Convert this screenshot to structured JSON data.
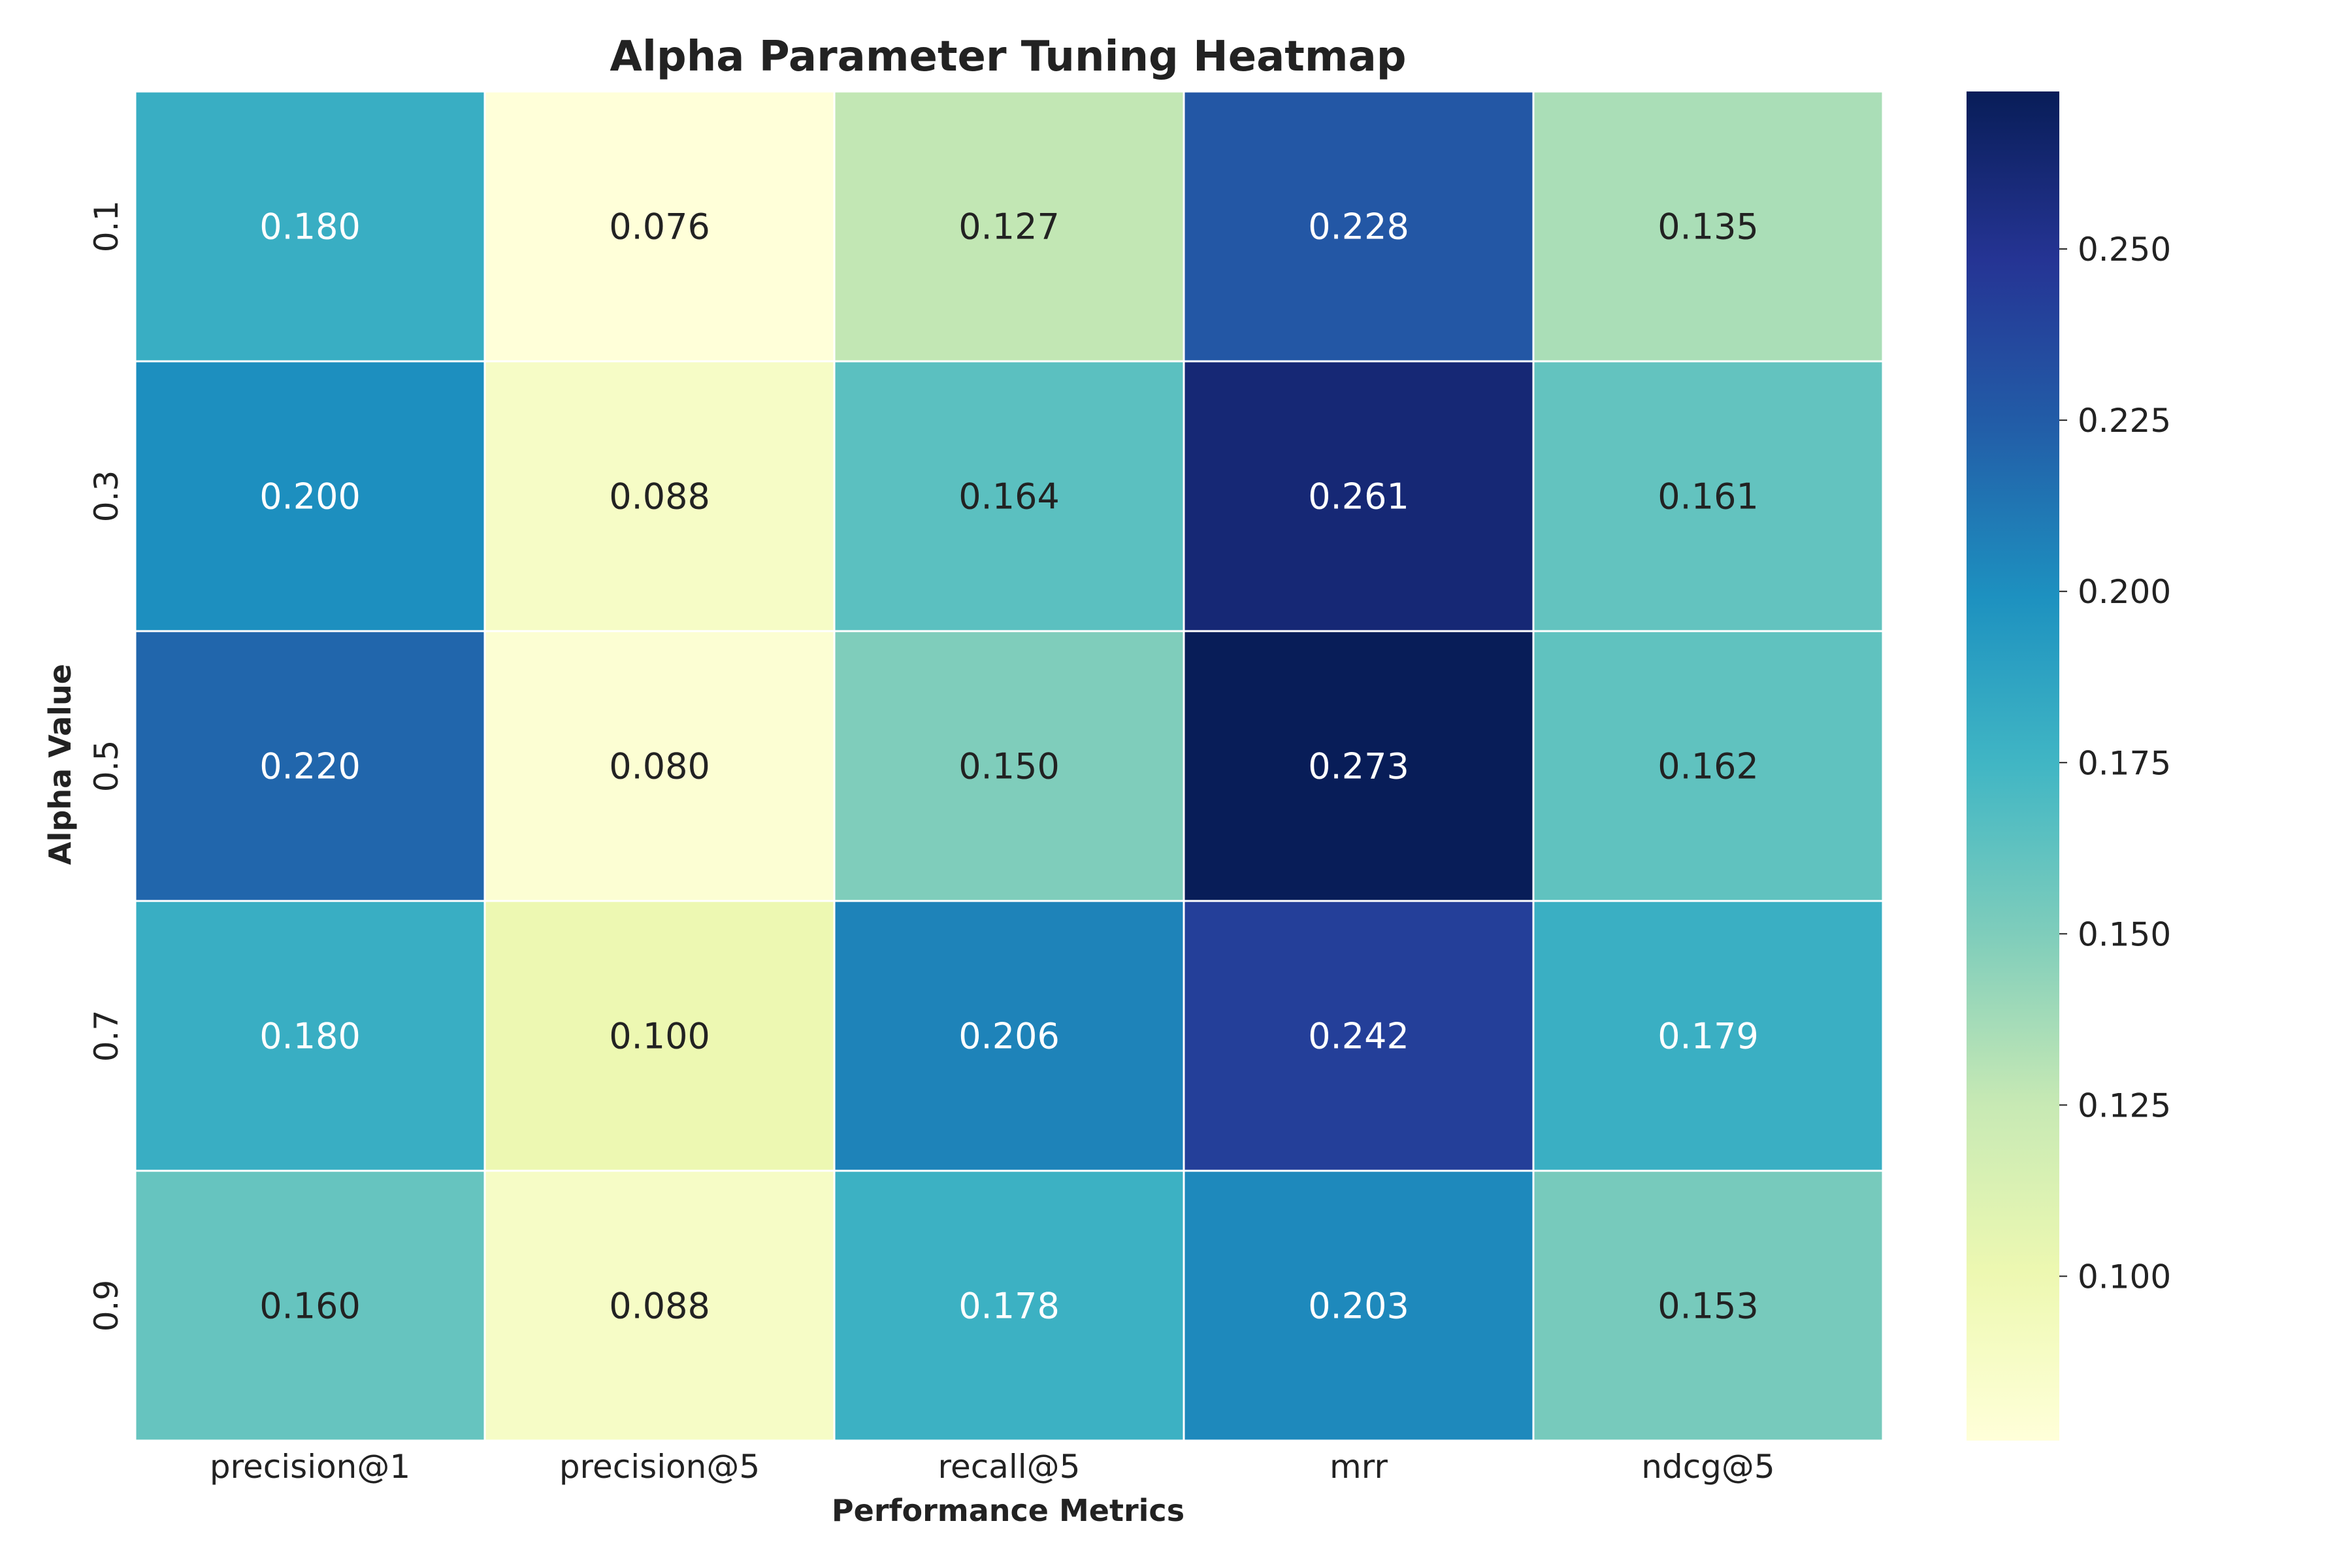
{
  "chart_data": {
    "type": "heatmap",
    "title": "Alpha Parameter Tuning Heatmap",
    "xlabel": "Performance Metrics",
    "ylabel": "Alpha Value",
    "x_categories": [
      "precision@1",
      "precision@5",
      "recall@5",
      "mrr",
      "ndcg@5"
    ],
    "y_categories": [
      "0.1",
      "0.3",
      "0.5",
      "0.7",
      "0.9"
    ],
    "values": [
      [
        0.18,
        0.076,
        0.127,
        0.228,
        0.135
      ],
      [
        0.2,
        0.088,
        0.164,
        0.261,
        0.161
      ],
      [
        0.22,
        0.08,
        0.15,
        0.273,
        0.162
      ],
      [
        0.18,
        0.1,
        0.206,
        0.242,
        0.179
      ],
      [
        0.16,
        0.088,
        0.178,
        0.203,
        0.153
      ]
    ],
    "annotation_format": "0.000",
    "colormap": "YlGnBu",
    "color_range": [
      0.076,
      0.273
    ],
    "colorbar_ticks": [
      0.1,
      0.125,
      0.15,
      0.175,
      0.2,
      0.225,
      0.25
    ],
    "colorbar_position": "right",
    "grid": false
  }
}
